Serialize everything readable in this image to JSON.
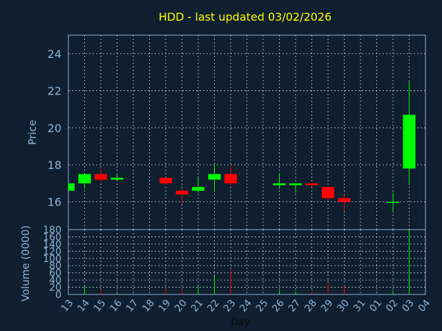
{
  "chart_data": [
    {
      "type": "candlestick",
      "title": "HDD - last updated 03/02/2026",
      "ylabel": "Price",
      "ylim": [
        14.5,
        25
      ],
      "yticks": [
        16,
        18,
        20,
        22,
        24
      ],
      "grid": true,
      "colors": {
        "up": "#00ff00",
        "down": "#ff0000",
        "title": "#ffff00",
        "axis_text": "#8fb3d9",
        "grid": "#c8d4e0",
        "background": "#0f1f2f"
      },
      "candles": [
        {
          "x": 13,
          "open": 16.6,
          "close": 17.0,
          "high": 17.0,
          "low": 16.6
        },
        {
          "x": 14,
          "open": 17.0,
          "close": 17.5,
          "high": 17.5,
          "low": 16.7
        },
        {
          "x": 15,
          "open": 17.5,
          "close": 17.2,
          "high": 17.8,
          "low": 17.1
        },
        {
          "x": 16,
          "open": 17.2,
          "close": 17.3,
          "high": 17.5,
          "low": 17.1
        },
        {
          "x": 19,
          "open": 17.3,
          "close": 17.0,
          "high": 17.3,
          "low": 16.9
        },
        {
          "x": 20,
          "open": 16.6,
          "close": 16.4,
          "high": 16.7,
          "low": 15.9
        },
        {
          "x": 21,
          "open": 16.6,
          "close": 16.8,
          "high": 17.3,
          "low": 16.5
        },
        {
          "x": 22,
          "open": 17.2,
          "close": 17.5,
          "high": 18.0,
          "low": 16.6
        },
        {
          "x": 23,
          "open": 17.5,
          "close": 17.0,
          "high": 18.0,
          "low": 16.8
        },
        {
          "x": 26,
          "open": 16.9,
          "close": 17.0,
          "high": 17.5,
          "low": 16.7
        },
        {
          "x": 27,
          "open": 16.9,
          "close": 17.0,
          "high": 17.0,
          "low": 16.5
        },
        {
          "x": 28,
          "open": 17.0,
          "close": 16.9,
          "high": 17.0,
          "low": 16.8
        },
        {
          "x": 29,
          "open": 16.8,
          "close": 16.2,
          "high": 16.8,
          "low": 16.1
        },
        {
          "x": 30,
          "open": 16.2,
          "close": 16.0,
          "high": 16.4,
          "low": 15.5
        },
        {
          "x": 33,
          "open": 15.95,
          "close": 16.0,
          "high": 16.5,
          "low": 15.5
        },
        {
          "x": 34,
          "open": 17.8,
          "close": 20.7,
          "high": 22.5,
          "low": 16.9
        }
      ]
    },
    {
      "type": "bar",
      "ylabel": "Volume (0000)",
      "xlabel": "Day",
      "ylim": [
        0,
        180
      ],
      "yticks": [
        0,
        20,
        40,
        60,
        80,
        100,
        120,
        140,
        160,
        180
      ],
      "xlim": [
        13,
        35
      ],
      "x_tick_labels": [
        "13",
        "14",
        "15",
        "16",
        "17",
        "18",
        "19",
        "20",
        "21",
        "22",
        "23",
        "24",
        "25",
        "26",
        "27",
        "28",
        "29",
        "30",
        "31",
        "01",
        "02",
        "03",
        "04"
      ],
      "volumes": [
        {
          "x": 13,
          "value": 2,
          "dir": "up"
        },
        {
          "x": 14,
          "value": 22,
          "dir": "up"
        },
        {
          "x": 15,
          "value": 12,
          "dir": "down"
        },
        {
          "x": 16,
          "value": 5,
          "dir": "up"
        },
        {
          "x": 19,
          "value": 15,
          "dir": "down"
        },
        {
          "x": 20,
          "value": 12,
          "dir": "down"
        },
        {
          "x": 21,
          "value": 22,
          "dir": "up"
        },
        {
          "x": 22,
          "value": 55,
          "dir": "up"
        },
        {
          "x": 23,
          "value": 70,
          "dir": "down"
        },
        {
          "x": 26,
          "value": 12,
          "dir": "up"
        },
        {
          "x": 27,
          "value": 8,
          "dir": "up"
        },
        {
          "x": 28,
          "value": 8,
          "dir": "down"
        },
        {
          "x": 29,
          "value": 32,
          "dir": "down"
        },
        {
          "x": 30,
          "value": 25,
          "dir": "down"
        },
        {
          "x": 33,
          "value": 10,
          "dir": "up"
        },
        {
          "x": 34,
          "value": 178,
          "dir": "up"
        }
      ]
    }
  ]
}
